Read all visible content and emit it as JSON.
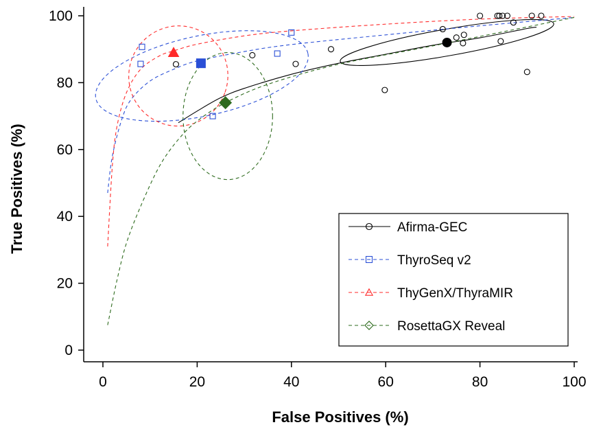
{
  "chart_data": {
    "type": "scatter",
    "title": "",
    "xlabel": "False Positives (%)",
    "ylabel": "True Positives (%)",
    "xlim": [
      0,
      100
    ],
    "ylim": [
      0,
      100
    ],
    "xticks": [
      0,
      20,
      40,
      60,
      80,
      100
    ],
    "yticks": [
      0,
      20,
      40,
      60,
      80,
      100
    ],
    "grid": false,
    "legend_position": "bottom-right",
    "series": [
      {
        "name": "Afirma-GEC",
        "color": "#000000",
        "marker": "circle",
        "line_style": "solid",
        "points": [
          [
            15.5,
            85.5
          ],
          [
            31.7,
            88.2
          ],
          [
            40.9,
            85.6
          ],
          [
            48.4,
            90
          ],
          [
            59.8,
            77.8
          ],
          [
            72.1,
            96
          ],
          [
            75,
            93.5
          ],
          [
            76.4,
            91.8
          ],
          [
            76.6,
            94.3
          ],
          [
            80,
            100
          ],
          [
            83.7,
            100
          ],
          [
            84.1,
            100
          ],
          [
            84.4,
            92.4
          ],
          [
            84.8,
            100
          ],
          [
            85.8,
            100
          ],
          [
            87.1,
            98
          ],
          [
            90,
            83.2
          ],
          [
            91,
            100
          ],
          [
            93,
            100
          ]
        ],
        "summary_point": [
          73,
          92
        ],
        "curve": [
          [
            16,
            68
          ],
          [
            20,
            71.5
          ],
          [
            25,
            75.5
          ],
          [
            30,
            78.3
          ],
          [
            40,
            82.5
          ],
          [
            50,
            85.8
          ],
          [
            60,
            88.5
          ],
          [
            70,
            91.2
          ],
          [
            80,
            93.4
          ],
          [
            90,
            96.2
          ],
          [
            92,
            96.6
          ]
        ],
        "confidence_ellipse": {
          "center": [
            73,
            92
          ],
          "radius": [
            23,
            4
          ],
          "angle": -10
        }
      },
      {
        "name": "ThyroSeq v2",
        "color": "#2a4fd6",
        "marker": "square",
        "line_style": "dashed",
        "points": [
          [
            8,
            85.6
          ],
          [
            8.3,
            90.7
          ],
          [
            23.3,
            70
          ],
          [
            37,
            88.7
          ],
          [
            40,
            95
          ]
        ],
        "summary_point": [
          20.8,
          85.8
        ],
        "curve": [
          [
            1,
            47
          ],
          [
            2,
            58
          ],
          [
            4,
            69
          ],
          [
            6,
            75
          ],
          [
            10,
            80.5
          ],
          [
            15,
            84
          ],
          [
            20,
            86.5
          ],
          [
            30,
            89.3
          ],
          [
            40,
            91.4
          ],
          [
            60,
            94.3
          ],
          [
            80,
            97
          ],
          [
            100,
            99.5
          ]
        ],
        "confidence_ellipse": {
          "center": [
            21,
            82
          ],
          "radius": [
            23,
            12
          ],
          "angle": -12
        }
      },
      {
        "name": "ThyGenX/ThyraMIR",
        "color": "#ff2a2a",
        "marker": "triangle",
        "line_style": "dashed",
        "points": [],
        "summary_point": [
          15,
          89
        ],
        "curve": [
          [
            1,
            31
          ],
          [
            2,
            55
          ],
          [
            3,
            67
          ],
          [
            5,
            77
          ],
          [
            8,
            84
          ],
          [
            12,
            88
          ],
          [
            15,
            89.5
          ],
          [
            20,
            91.5
          ],
          [
            30,
            94
          ],
          [
            40,
            95.5
          ],
          [
            60,
            97.5
          ],
          [
            80,
            99
          ],
          [
            100,
            99.8
          ]
        ],
        "confidence_ellipse": {
          "center": [
            16,
            82
          ],
          "radius": [
            10.5,
            15
          ],
          "angle": 20
        }
      },
      {
        "name": "RosettaGX Reveal",
        "color": "#2e6b1e",
        "marker": "diamond",
        "line_style": "dashed",
        "points": [],
        "summary_point": [
          26,
          74
        ],
        "curve": [
          [
            1,
            7.5
          ],
          [
            3,
            21
          ],
          [
            5,
            32
          ],
          [
            8,
            43
          ],
          [
            12,
            55
          ],
          [
            16,
            63
          ],
          [
            20,
            68.5
          ],
          [
            26,
            74
          ],
          [
            35,
            79.5
          ],
          [
            50,
            85.5
          ],
          [
            70,
            91
          ],
          [
            100,
            99.5
          ]
        ],
        "confidence_ellipse": {
          "center": [
            26.5,
            70
          ],
          "radius": [
            9.5,
            19
          ],
          "angle": 0
        }
      }
    ]
  }
}
